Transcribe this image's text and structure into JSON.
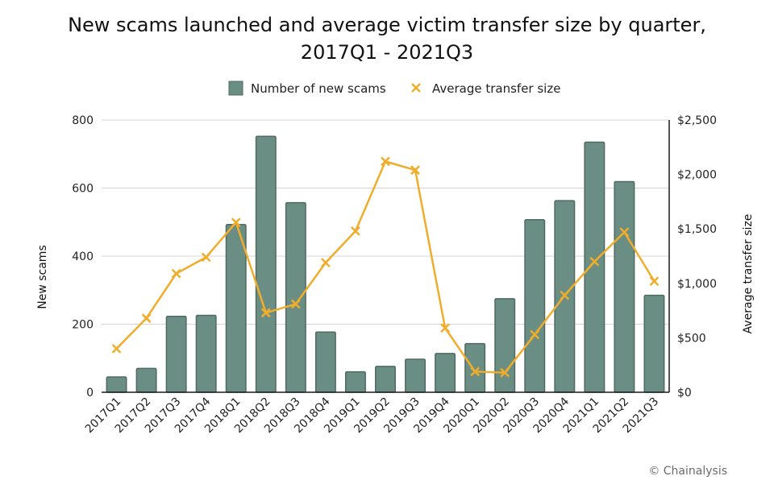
{
  "chart_data": {
    "type": "bar",
    "title_line1": "New scams launched and average victim transfer size by quarter,",
    "title_line2": "2017Q1 - 2021Q3",
    "categories": [
      "2017Q1",
      "2017Q2",
      "2017Q3",
      "2017Q4",
      "2018Q1",
      "2018Q2",
      "2018Q3",
      "2018Q4",
      "2019Q1",
      "2019Q2",
      "2019Q3",
      "2019Q4",
      "2020Q1",
      "2020Q2",
      "2020Q3",
      "2020Q4",
      "2021Q1",
      "2021Q2",
      "2021Q3"
    ],
    "series": [
      {
        "name": "Number of new scams",
        "type": "bar",
        "axis": "left",
        "color": "#6a8e83",
        "values": [
          45,
          70,
          223,
          226,
          493,
          752,
          557,
          177,
          60,
          76,
          97,
          114,
          143,
          275,
          507,
          563,
          735,
          619,
          285
        ]
      },
      {
        "name": "Average transfer size",
        "type": "line",
        "axis": "right",
        "color": "#f0ad2b",
        "values": [
          400,
          680,
          1090,
          1240,
          1560,
          730,
          810,
          1190,
          1480,
          2120,
          2040,
          590,
          190,
          180,
          530,
          890,
          1200,
          1470,
          1020
        ]
      }
    ],
    "ylabel": "New scams",
    "y2label": "Average transfer size",
    "ylim": [
      0,
      800
    ],
    "y2lim": [
      0,
      2500
    ],
    "yticks": [
      "0",
      "200",
      "400",
      "600",
      "800"
    ],
    "y2ticks": [
      "$0",
      "$500",
      "$1,000",
      "$1,500",
      "$2,000",
      "$2,500"
    ],
    "grid": true,
    "legend_position": "top-center"
  },
  "source": "© Chainalysis"
}
